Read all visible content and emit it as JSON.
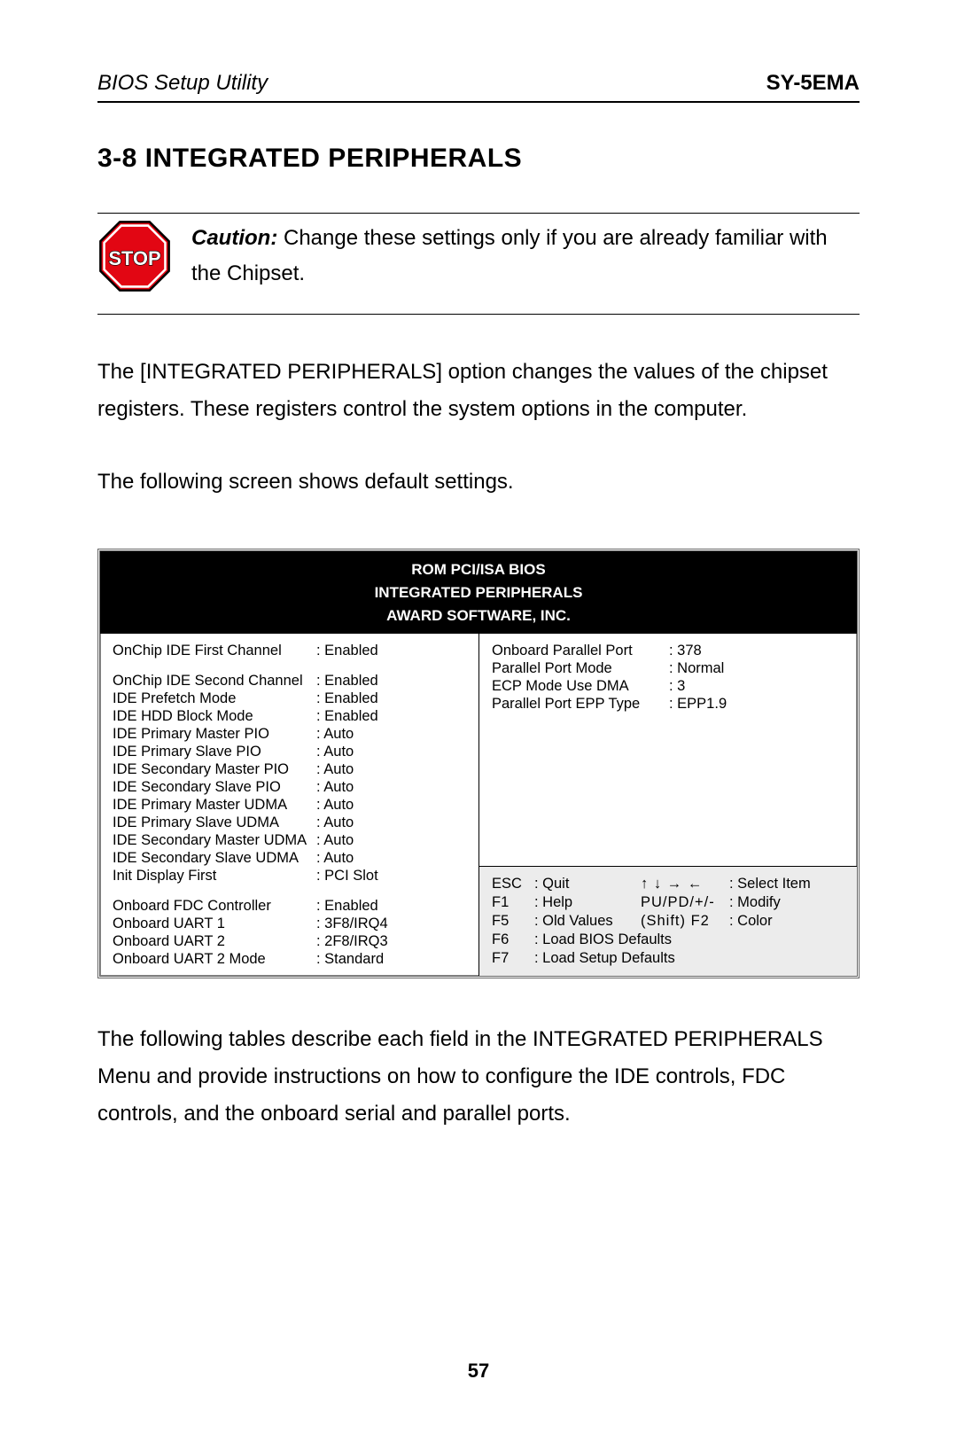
{
  "header": {
    "left": "BIOS Setup Utility",
    "right": "SY-5EMA"
  },
  "section_title": "3-8  INTEGRATED PERIPHERALS",
  "caution": {
    "label": "Caution:",
    "text": " Change these settings only if you are already familiar with the Chipset."
  },
  "para1": "The [INTEGRATED PERIPHERALS] option changes the values of the chipset registers. These registers control the system options in the computer.",
  "para2": "The following screen shows default settings.",
  "bios": {
    "header_lines": [
      "ROM PCI/ISA BIOS",
      "INTEGRATED PERIPHERALS",
      "AWARD SOFTWARE, INC."
    ],
    "left_settings": [
      {
        "label": "OnChip IDE First Channel",
        "value": ": Enabled"
      },
      {
        "label": "OnChip IDE Second Channel",
        "value": ": Enabled",
        "gap_before": true
      },
      {
        "label": "IDE Prefetch Mode",
        "value": ": Enabled"
      },
      {
        "label": "IDE HDD Block Mode",
        "value": ": Enabled"
      },
      {
        "label": "IDE Primary Master PIO",
        "value": ": Auto"
      },
      {
        "label": "IDE Primary Slave PIO",
        "value": ": Auto"
      },
      {
        "label": "IDE Secondary Master PIO",
        "value": ": Auto"
      },
      {
        "label": "IDE Secondary Slave PIO",
        "value": ": Auto"
      },
      {
        "label": "IDE Primary Master UDMA",
        "value": ": Auto"
      },
      {
        "label": "IDE Primary Slave UDMA",
        "value": ": Auto"
      },
      {
        "label": "IDE Secondary Master UDMA",
        "value": ": Auto"
      },
      {
        "label": "IDE Secondary Slave UDMA",
        "value": ": Auto"
      },
      {
        "label": "Init Display First",
        "value": ": PCI Slot"
      },
      {
        "label": "Onboard FDC Controller",
        "value": ": Enabled",
        "gap_before": true
      },
      {
        "label": "Onboard UART 1",
        "value": ": 3F8/IRQ4"
      },
      {
        "label": "Onboard UART 2",
        "value": ": 2F8/IRQ3"
      },
      {
        "label": "Onboard UART 2 Mode",
        "value": ": Standard"
      }
    ],
    "right_settings": [
      {
        "label": "Onboard Parallel Port",
        "value": ": 378"
      },
      {
        "label": "Parallel Port Mode",
        "value": ": Normal"
      },
      {
        "label": "ECP Mode Use DMA",
        "value": ": 3"
      },
      {
        "label": "Parallel Port EPP Type",
        "value": ": EPP1.9"
      }
    ],
    "keys": {
      "rows": [
        {
          "k": "ESC",
          "a": ": Quit",
          "k2": "↑ ↓ → ←",
          "a2": ": Select Item"
        },
        {
          "k": "F1",
          "a": ": Help",
          "k2": "PU/PD/+/-",
          "a2": ": Modify"
        },
        {
          "k": "F5",
          "a": ": Old Values",
          "k2": "(Shift) F2",
          "a2": ": Color"
        },
        {
          "k": "F6",
          "wide": ": Load BIOS Defaults"
        },
        {
          "k": "F7",
          "wide": ": Load Setup Defaults"
        }
      ]
    }
  },
  "para3": "The following tables describe each field in the INTEGRATED PERIPHERALS Menu and provide instructions on how to configure the IDE controls, FDC controls, and the onboard serial and parallel ports.",
  "page_number": "57",
  "stop_icon": {
    "fill": "#e20613",
    "stroke": "#000000",
    "text": "STOP",
    "text_color": "#ffffff"
  }
}
